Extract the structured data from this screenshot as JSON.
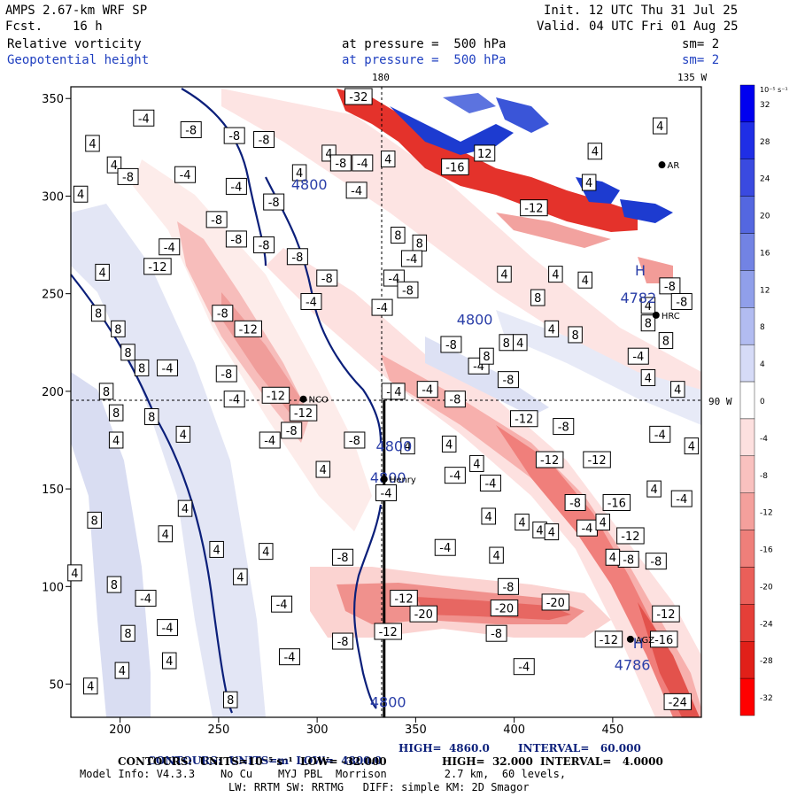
{
  "header": {
    "model": "AMPS 2.67-km WRF SP",
    "fcst_label": "Fcst.",
    "fcst_value": "16 h",
    "init": "Init. 12 UTC Thu 31 Jul 25",
    "valid": "Valid. 04 UTC Fri 01 Aug 25",
    "field1": "Relative vorticity",
    "field1_level": "at pressure =  500 hPa",
    "field1_sm": "sm= 2",
    "field2": "Geopotential height",
    "field2_level": "at pressure =  500 hPa",
    "field2_sm": "sm= 2",
    "lon_top_a": "180",
    "lon_top_b": "135 W",
    "lon_right": "90 W"
  },
  "chart_data": {
    "type": "heatmap",
    "xlim": [
      175,
      495
    ],
    "ylim": [
      33,
      356
    ],
    "xticks": [
      200,
      250,
      300,
      350,
      400,
      450
    ],
    "yticks": [
      50,
      100,
      150,
      200,
      250,
      300,
      350
    ],
    "colorbar": {
      "unit_label": "10⁻⁵ s⁻¹",
      "levels": [
        32,
        28,
        24,
        20,
        16,
        12,
        8,
        4,
        0,
        -4,
        -8,
        -12,
        -16,
        -20,
        -24,
        -28,
        -32
      ]
    },
    "height_contour_labels": [
      {
        "text": "4800",
        "x": 296,
        "y": 306
      },
      {
        "text": "4800",
        "x": 380,
        "y": 237
      },
      {
        "text": "4800",
        "x": 339,
        "y": 172
      },
      {
        "text": "4800",
        "x": 336,
        "y": 156
      },
      {
        "text": "4800",
        "x": 336,
        "y": 41
      },
      {
        "text": "4782",
        "x": 463,
        "y": 248
      },
      {
        "text": "4786",
        "x": 460,
        "y": 60
      }
    ],
    "highs": [
      {
        "text": "H",
        "x": 464,
        "y": 262
      },
      {
        "text": "H",
        "x": 463,
        "y": 71
      }
    ],
    "vorticity_labels": [
      {
        "t": "-4",
        "x": 212,
        "y": 340
      },
      {
        "t": "-8",
        "x": 236,
        "y": 334
      },
      {
        "t": "-8",
        "x": 258,
        "y": 331
      },
      {
        "t": "-8",
        "x": 273,
        "y": 329
      },
      {
        "t": "4",
        "x": 186,
        "y": 327
      },
      {
        "t": "4",
        "x": 197,
        "y": 316
      },
      {
        "t": "-8",
        "x": 204,
        "y": 310
      },
      {
        "t": "-4",
        "x": 233,
        "y": 311
      },
      {
        "t": "4",
        "x": 180,
        "y": 301
      },
      {
        "t": "-4",
        "x": 259,
        "y": 305
      },
      {
        "t": "-8",
        "x": 278,
        "y": 297
      },
      {
        "t": "4",
        "x": 291,
        "y": 312
      },
      {
        "t": "4",
        "x": 306,
        "y": 322
      },
      {
        "t": "-8",
        "x": 312,
        "y": 317
      },
      {
        "t": "-4",
        "x": 323,
        "y": 317
      },
      {
        "t": "4",
        "x": 336,
        "y": 319
      },
      {
        "t": "-4",
        "x": 320,
        "y": 303
      },
      {
        "t": "-4",
        "x": 225,
        "y": 274
      },
      {
        "t": "-8",
        "x": 249,
        "y": 288
      },
      {
        "t": "-8",
        "x": 259,
        "y": 278
      },
      {
        "t": "-12",
        "x": 219,
        "y": 264
      },
      {
        "t": "4",
        "x": 191,
        "y": 261
      },
      {
        "t": "-8",
        "x": 273,
        "y": 275
      },
      {
        "t": "-8",
        "x": 290,
        "y": 269
      },
      {
        "t": "-8",
        "x": 305,
        "y": 258
      },
      {
        "t": "-4",
        "x": 297,
        "y": 246
      },
      {
        "t": "-4",
        "x": 333,
        "y": 243
      },
      {
        "t": "-4",
        "x": 339,
        "y": 258
      },
      {
        "t": "-8",
        "x": 346,
        "y": 252
      },
      {
        "t": "8",
        "x": 189,
        "y": 240
      },
      {
        "t": "8",
        "x": 199,
        "y": 232
      },
      {
        "t": "-8",
        "x": 252,
        "y": 240
      },
      {
        "t": "-12",
        "x": 265,
        "y": 232
      },
      {
        "t": "8",
        "x": 204,
        "y": 220
      },
      {
        "t": "8",
        "x": 211,
        "y": 212
      },
      {
        "t": "-4",
        "x": 224,
        "y": 212
      },
      {
        "t": "-8",
        "x": 254,
        "y": 209
      },
      {
        "t": "-12",
        "x": 279,
        "y": 198
      },
      {
        "t": "-4",
        "x": 258,
        "y": 196
      },
      {
        "t": "8",
        "x": 193,
        "y": 200
      },
      {
        "t": "8",
        "x": 198,
        "y": 189
      },
      {
        "t": "8",
        "x": 216,
        "y": 187
      },
      {
        "t": "-12",
        "x": 293,
        "y": 189
      },
      {
        "t": "-8",
        "x": 287,
        "y": 180
      },
      {
        "t": "-4",
        "x": 276,
        "y": 175
      },
      {
        "t": "-8",
        "x": 319,
        "y": 175
      },
      {
        "t": "4",
        "x": 232,
        "y": 178
      },
      {
        "t": "4",
        "x": 303,
        "y": 160
      },
      {
        "t": "4",
        "x": 198,
        "y": 175
      },
      {
        "t": "4",
        "x": 233,
        "y": 140
      },
      {
        "t": "4",
        "x": 223,
        "y": 127
      },
      {
        "t": "8",
        "x": 187,
        "y": 134
      },
      {
        "t": "4",
        "x": 177,
        "y": 107
      },
      {
        "t": "8",
        "x": 197,
        "y": 101
      },
      {
        "t": "4",
        "x": 249,
        "y": 119
      },
      {
        "t": "4",
        "x": 261,
        "y": 105
      },
      {
        "t": "4",
        "x": 274,
        "y": 118
      },
      {
        "t": "-4",
        "x": 213,
        "y": 94
      },
      {
        "t": "-4",
        "x": 224,
        "y": 79
      },
      {
        "t": "-4",
        "x": 282,
        "y": 91
      },
      {
        "t": "-4",
        "x": 286,
        "y": 64
      },
      {
        "t": "8",
        "x": 204,
        "y": 76
      },
      {
        "t": "4",
        "x": 225,
        "y": 62
      },
      {
        "t": "4",
        "x": 201,
        "y": 57
      },
      {
        "t": "8",
        "x": 256,
        "y": 42
      },
      {
        "t": "4",
        "x": 185,
        "y": 49
      },
      {
        "t": "-4",
        "x": 335,
        "y": 148
      },
      {
        "t": "-4",
        "x": 370,
        "y": 157
      },
      {
        "t": "-4",
        "x": 388,
        "y": 153
      },
      {
        "t": "-8",
        "x": 313,
        "y": 115
      },
      {
        "t": "-4",
        "x": 365,
        "y": 120
      },
      {
        "t": "4",
        "x": 346,
        "y": 172
      },
      {
        "t": "4",
        "x": 367,
        "y": 173
      },
      {
        "t": "4",
        "x": 381,
        "y": 163
      },
      {
        "t": "4",
        "x": 387,
        "y": 136
      },
      {
        "t": "4",
        "x": 391,
        "y": 116
      },
      {
        "t": "-12",
        "x": 344,
        "y": 94
      },
      {
        "t": "-8",
        "x": 397,
        "y": 100
      },
      {
        "t": "-20",
        "x": 354,
        "y": 86
      },
      {
        "t": "-20",
        "x": 395,
        "y": 89
      },
      {
        "t": "-20",
        "x": 421,
        "y": 92
      },
      {
        "t": "-12",
        "x": 336,
        "y": 77
      },
      {
        "t": "-8",
        "x": 391,
        "y": 76
      },
      {
        "t": "-4",
        "x": 405,
        "y": 59
      },
      {
        "t": "-8",
        "x": 313,
        "y": 72
      },
      {
        "t": "-4",
        "x": 338,
        "y": 200
      },
      {
        "t": "-4",
        "x": 356,
        "y": 201
      },
      {
        "t": "-8",
        "x": 370,
        "y": 196
      },
      {
        "t": "-4",
        "x": 382,
        "y": 213
      },
      {
        "t": "-8",
        "x": 368,
        "y": 224
      },
      {
        "t": "-8",
        "x": 397,
        "y": 206
      },
      {
        "t": "4",
        "x": 341,
        "y": 200
      },
      {
        "t": "8",
        "x": 341,
        "y": 280
      },
      {
        "t": "8",
        "x": 352,
        "y": 276
      },
      {
        "t": "-4",
        "x": 348,
        "y": 268
      },
      {
        "t": "4",
        "x": 395,
        "y": 260
      },
      {
        "t": "4",
        "x": 421,
        "y": 260
      },
      {
        "t": "4",
        "x": 436,
        "y": 257
      },
      {
        "t": "-12",
        "x": 405,
        "y": 186
      },
      {
        "t": "-12",
        "x": 418,
        "y": 165
      },
      {
        "t": "-8",
        "x": 425,
        "y": 182
      },
      {
        "t": "-12",
        "x": 442,
        "y": 165
      },
      {
        "t": "-8",
        "x": 431,
        "y": 143
      },
      {
        "t": "-16",
        "x": 452,
        "y": 143
      },
      {
        "t": "-12",
        "x": 459,
        "y": 126
      },
      {
        "t": "-8",
        "x": 458,
        "y": 114
      },
      {
        "t": "-8",
        "x": 472,
        "y": 113
      },
      {
        "t": "-12",
        "x": 477,
        "y": 86
      },
      {
        "t": "-12",
        "x": 448,
        "y": 73
      },
      {
        "t": "-16",
        "x": 476,
        "y": 73
      },
      {
        "t": "-24",
        "x": 483,
        "y": 41
      },
      {
        "t": "4",
        "x": 404,
        "y": 133
      },
      {
        "t": "4",
        "x": 413,
        "y": 129
      },
      {
        "t": "4",
        "x": 419,
        "y": 128
      },
      {
        "t": "-4",
        "x": 437,
        "y": 130
      },
      {
        "t": "4",
        "x": 445,
        "y": 133
      },
      {
        "t": "4",
        "x": 450,
        "y": 115
      },
      {
        "t": "8",
        "x": 386,
        "y": 218
      },
      {
        "t": "8",
        "x": 396,
        "y": 225
      },
      {
        "t": "4",
        "x": 403,
        "y": 225
      },
      {
        "t": "4",
        "x": 419,
        "y": 232
      },
      {
        "t": "8",
        "x": 412,
        "y": 248
      },
      {
        "t": "8",
        "x": 431,
        "y": 229
      },
      {
        "t": "8",
        "x": 468,
        "y": 235
      },
      {
        "t": "4",
        "x": 468,
        "y": 244
      },
      {
        "t": "-4",
        "x": 463,
        "y": 218
      },
      {
        "t": "4",
        "x": 468,
        "y": 207
      },
      {
        "t": "8",
        "x": 477,
        "y": 226
      },
      {
        "t": "-4",
        "x": 474,
        "y": 178
      },
      {
        "t": "4",
        "x": 490,
        "y": 172
      },
      {
        "t": "-4",
        "x": 485,
        "y": 145
      },
      {
        "t": "-8",
        "x": 479,
        "y": 254
      },
      {
        "t": "-8",
        "x": 485,
        "y": 246
      },
      {
        "t": "4",
        "x": 483,
        "y": 201
      },
      {
        "t": "4",
        "x": 471,
        "y": 150
      },
      {
        "t": "-32",
        "x": 321,
        "y": 351
      },
      {
        "t": "12",
        "x": 385,
        "y": 322
      },
      {
        "t": "-16",
        "x": 370,
        "y": 315
      },
      {
        "t": "4",
        "x": 438,
        "y": 307
      },
      {
        "t": "-12",
        "x": 410,
        "y": 294
      },
      {
        "t": "4",
        "x": 474,
        "y": 336
      },
      {
        "t": "4",
        "x": 441,
        "y": 323
      }
    ],
    "station_labels": [
      {
        "text": "NCO",
        "x": 293,
        "y": 196
      },
      {
        "text": "Henry",
        "x": 334,
        "y": 155
      },
      {
        "text": "HRC",
        "x": 472,
        "y": 239
      },
      {
        "text": "AGZ",
        "x": 459,
        "y": 73
      },
      {
        "text": "AR",
        "x": 475,
        "y": 316
      }
    ],
    "trajectory_line_x": 334
  },
  "footer": {
    "line1_a": "CONTOURS:  UNITS=m  LOW=  4800.0",
    "line1_b": "HIGH=  4860.0",
    "line1_c": "INTERVAL=   60.000",
    "line2_a": "CONTOURS:  UNITS=10⁻⁵ s⁻¹  LOW= -32.000",
    "line2_b": "HIGH=  32.000",
    "line2_c": "INTERVAL=   4.0000",
    "line3": "Model Info: V4.3.3    No Cu    MYJ PBL  Morrison         2.7 km,  60 levels,",
    "line4": "LW: RRTM SW: RRTMG   DIFF: simple KM: 2D Smagor"
  }
}
